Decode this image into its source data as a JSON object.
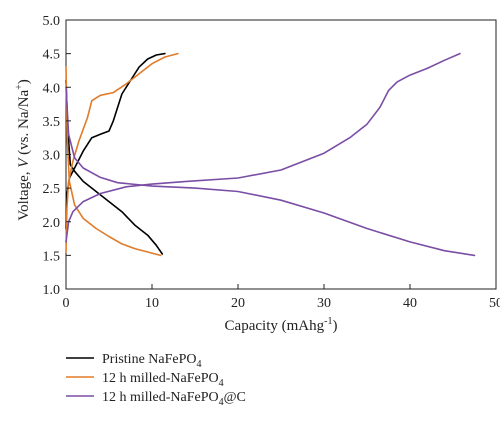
{
  "chart_data": {
    "type": "line",
    "title": "",
    "xlabel": {
      "main": "Capacity (mAhg",
      "sup": "-1",
      "end": ")"
    },
    "ylabel": {
      "main": "Voltage, ",
      "italic": "V",
      "rest": " (vs. Na/Na",
      "sup": "+",
      "end": ")"
    },
    "xlim": [
      0,
      50
    ],
    "ylim": [
      1.0,
      5.0
    ],
    "xticks": [
      "0",
      "10",
      "20",
      "30",
      "40",
      "50"
    ],
    "yticks": [
      "1.0",
      "1.5",
      "2.0",
      "2.5",
      "3.0",
      "3.5",
      "4.0",
      "4.5",
      "5.0"
    ],
    "grid": false,
    "legend_position": "bottom-left",
    "series": [
      {
        "name": {
          "prefix": "Pristine NaFePO",
          "sub": "4",
          "suffix": ""
        },
        "color": "#000000",
        "segments": [
          [
            [
              0.0,
              4.1
            ],
            [
              0.2,
              3.4
            ],
            [
              0.5,
              2.85
            ],
            [
              1.0,
              2.75
            ],
            [
              2.0,
              2.6
            ],
            [
              3.5,
              2.45
            ],
            [
              5.0,
              2.3
            ],
            [
              6.5,
              2.15
            ],
            [
              8.0,
              1.95
            ],
            [
              9.5,
              1.8
            ],
            [
              10.5,
              1.65
            ],
            [
              11.2,
              1.52
            ]
          ],
          [
            [
              0.0,
              1.9
            ],
            [
              0.1,
              2.4
            ],
            [
              0.4,
              2.65
            ],
            [
              1.0,
              2.8
            ],
            [
              2.0,
              3.05
            ],
            [
              3.0,
              3.25
            ],
            [
              4.0,
              3.3
            ],
            [
              5.0,
              3.35
            ],
            [
              5.5,
              3.5
            ],
            [
              6.5,
              3.9
            ],
            [
              7.5,
              4.1
            ],
            [
              8.5,
              4.3
            ],
            [
              9.5,
              4.42
            ],
            [
              10.5,
              4.48
            ],
            [
              11.5,
              4.5
            ]
          ]
        ]
      },
      {
        "name": {
          "prefix": "12 h milled-NaFePO",
          "sub": "4",
          "suffix": ""
        },
        "color": "#e07b2a",
        "segments": [
          [
            [
              0.0,
              4.3
            ],
            [
              0.15,
              3.2
            ],
            [
              0.4,
              2.6
            ],
            [
              1.0,
              2.25
            ],
            [
              2.0,
              2.05
            ],
            [
              3.5,
              1.9
            ],
            [
              5.0,
              1.78
            ],
            [
              6.5,
              1.67
            ],
            [
              8.0,
              1.6
            ],
            [
              9.5,
              1.55
            ],
            [
              11.0,
              1.5
            ]
          ],
          [
            [
              0.0,
              1.55
            ],
            [
              0.1,
              2.2
            ],
            [
              0.3,
              2.6
            ],
            [
              0.8,
              2.9
            ],
            [
              1.5,
              3.2
            ],
            [
              2.5,
              3.55
            ],
            [
              3.0,
              3.8
            ],
            [
              4.0,
              3.88
            ],
            [
              5.5,
              3.92
            ],
            [
              7.0,
              4.05
            ],
            [
              8.5,
              4.2
            ],
            [
              10.0,
              4.35
            ],
            [
              11.5,
              4.45
            ],
            [
              13.0,
              4.5
            ]
          ]
        ]
      },
      {
        "name": {
          "prefix": "12 h milled-NaFePO",
          "sub": "4",
          "suffix": "@C"
        },
        "color": "#7a4ea5",
        "segments": [
          [
            [
              0.0,
              4.0
            ],
            [
              0.3,
              3.3
            ],
            [
              1.0,
              2.95
            ],
            [
              2.0,
              2.8
            ],
            [
              4.0,
              2.66
            ],
            [
              6.0,
              2.58
            ],
            [
              10.0,
              2.53
            ],
            [
              15.0,
              2.5
            ],
            [
              20.0,
              2.45
            ],
            [
              25.0,
              2.32
            ],
            [
              30.0,
              2.13
            ],
            [
              35.0,
              1.9
            ],
            [
              40.0,
              1.7
            ],
            [
              44.0,
              1.57
            ],
            [
              47.5,
              1.5
            ]
          ],
          [
            [
              0.0,
              1.7
            ],
            [
              0.3,
              2.0
            ],
            [
              0.8,
              2.15
            ],
            [
              2.0,
              2.3
            ],
            [
              4.0,
              2.42
            ],
            [
              7.0,
              2.52
            ],
            [
              10.0,
              2.56
            ],
            [
              14.0,
              2.6
            ],
            [
              20.0,
              2.65
            ],
            [
              25.0,
              2.77
            ],
            [
              30.0,
              3.02
            ],
            [
              33.0,
              3.25
            ],
            [
              35.0,
              3.45
            ],
            [
              36.5,
              3.7
            ],
            [
              37.5,
              3.95
            ],
            [
              38.5,
              4.08
            ],
            [
              40.0,
              4.18
            ],
            [
              42.0,
              4.28
            ],
            [
              44.0,
              4.4
            ],
            [
              45.8,
              4.5
            ]
          ]
        ]
      }
    ]
  }
}
